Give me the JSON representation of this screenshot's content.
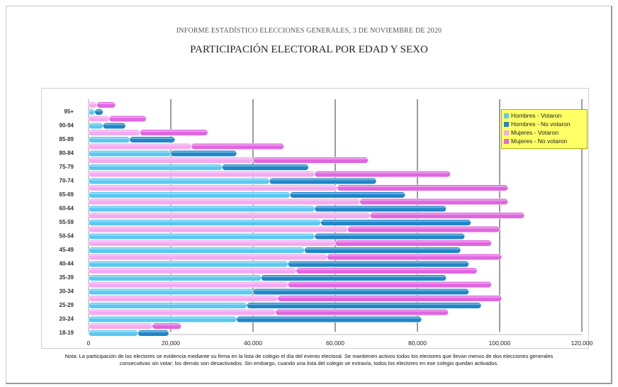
{
  "header": {
    "subtitle": "INFORME ESTADÍSTICO ELECCIONES GENERALES, 3 DE NOVIEMBRE DE 2020",
    "title": "PARTICIPACIÓN ELECTORAL  POR EDAD Y SEXO"
  },
  "chart_data": {
    "type": "bar",
    "orientation": "horizontal",
    "stacked": true,
    "categories": [
      "18-19",
      "20-24",
      "25-29",
      "30-34",
      "35-39",
      "40-44",
      "45-49",
      "50-54",
      "55-59",
      "60-64",
      "65-69",
      "70-74",
      "75-79",
      "80-84",
      "85-89",
      "90-94",
      "95+"
    ],
    "series": [
      {
        "name": "Hombres - Votaron",
        "color": "#5bc8f0",
        "group": "Hombres",
        "values": [
          12000,
          36000,
          38500,
          40000,
          42000,
          48500,
          52500,
          55000,
          56500,
          55000,
          49000,
          44000,
          32500,
          20000,
          10000,
          3500,
          1500
        ]
      },
      {
        "name": "Hombres - No votaron",
        "color": "#1f86c8",
        "group": "Hombres",
        "values": [
          7500,
          45000,
          57000,
          52500,
          45000,
          44000,
          38000,
          36500,
          36500,
          32000,
          28000,
          26000,
          21000,
          16000,
          11000,
          5500,
          2000
        ]
      },
      {
        "name": "Mujeres - Votaron",
        "color": "#f3aaf0",
        "group": "Mujeres",
        "values": [
          15500,
          45500,
          46000,
          48500,
          50500,
          58000,
          60000,
          63000,
          68500,
          66000,
          60500,
          55000,
          40000,
          25000,
          12500,
          5000,
          2000
        ]
      },
      {
        "name": "Mujeres - No votaron",
        "color": "#e066e0",
        "group": "Mujeres",
        "values": [
          7000,
          42000,
          54500,
          49500,
          44000,
          42500,
          38000,
          37000,
          37500,
          36000,
          41500,
          33000,
          28000,
          22500,
          16500,
          9000,
          4500
        ]
      }
    ],
    "xlabel": "",
    "ylabel": "",
    "xlim": [
      0,
      120000
    ],
    "xticks": [
      "0",
      "20,000",
      "40,000",
      "60,000",
      "80,000",
      "100,000",
      "120,000"
    ],
    "grid": "vertical",
    "legend_position": "top-right"
  },
  "note": "Nota: La participación de los electores se evidencia mediante su firma en la lista de colegio el día del evento electoral. Se mantienen activos todos los electores que llevan menos de dos elecciones generales consecutivas sin votar;  los demás son desactivados.  Sin embargo, cuando una lista del colegio se extravía, todos los electores en ese colegio quedan activados."
}
